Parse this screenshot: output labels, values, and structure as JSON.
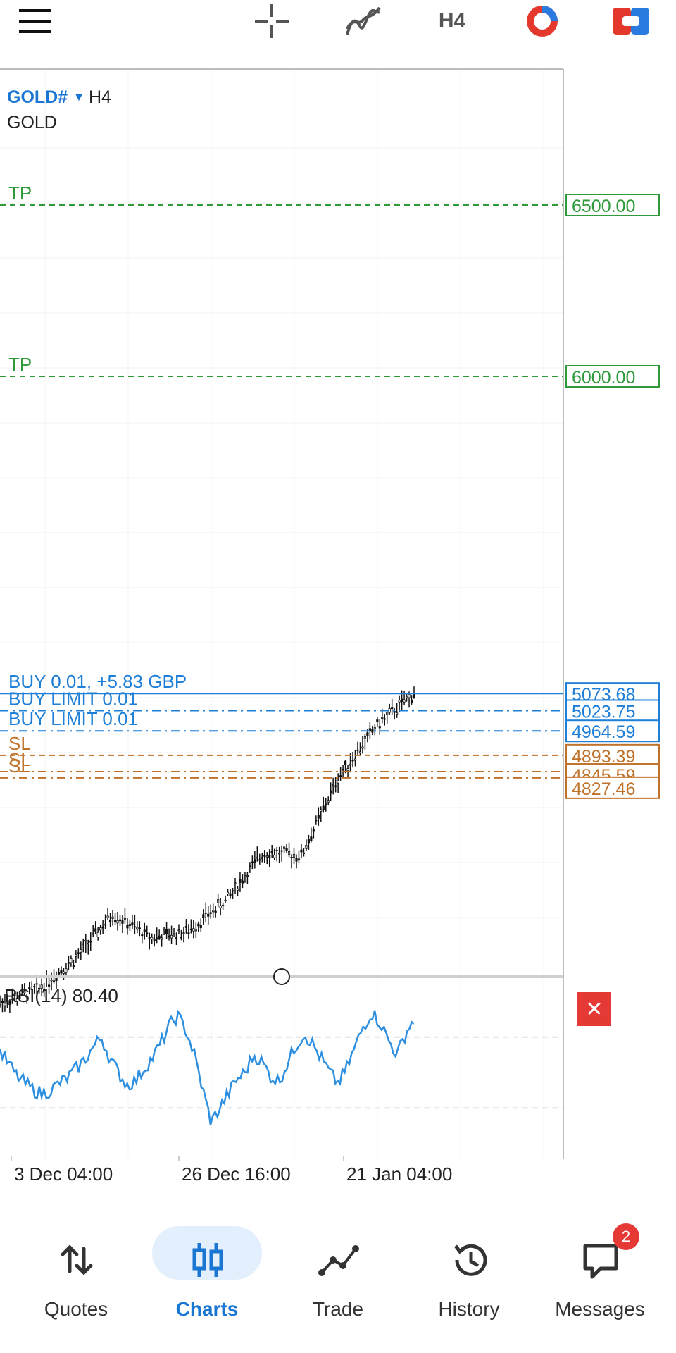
{
  "toolbar": {
    "menu_icon": "hamburger-menu-icon",
    "crosshair_icon": "crosshair-icon",
    "indicators_icon": "indicators-icon",
    "timeframe": "H4",
    "objects_icon": "chart-objects-icon",
    "trade_icon": "one-click-trading-icon"
  },
  "symbol": {
    "name": "GOLD#",
    "timeframe": "H4",
    "description": "GOLD"
  },
  "levels": [
    {
      "type": "tp",
      "label": "TP",
      "price": "6500.00"
    },
    {
      "type": "tp",
      "label": "TP",
      "price": "6000.00"
    },
    {
      "type": "position",
      "label": "BUY 0.01,  +5.83 GBP",
      "price": "5073.68"
    },
    {
      "type": "pending",
      "label": "BUY LIMIT 0.01",
      "price": "5023.75"
    },
    {
      "type": "pending",
      "label": "BUY LIMIT 0.01",
      "price": "4964.59"
    },
    {
      "type": "sl",
      "label": "SL",
      "price": "4893.39"
    },
    {
      "type": "sl",
      "label": "SL",
      "price": "4845.59"
    },
    {
      "type": "sl",
      "label": "SL",
      "price": "4827.46"
    }
  ],
  "rsi": {
    "label": "RSI(14) 80.40",
    "close_icon": "close-icon"
  },
  "time_axis": [
    "3 Dec 04:00",
    "26 Dec 16:00",
    "21 Jan 04:00"
  ],
  "colors": {
    "accent": "#1976d2",
    "tp": "#2e9a3a",
    "sl": "#c0722a",
    "position": "#1e7fd8",
    "rsi": "#2d8fe0",
    "close": "#e53935"
  },
  "chart_data": {
    "type": "candlestick",
    "symbol": "GOLD#",
    "timeframe": "H4",
    "x_ticks": [
      "3 Dec 04:00",
      "26 Dec 16:00",
      "21 Jan 04:00"
    ],
    "close_trend": [
      {
        "x": "3 Dec 04:00",
        "y": 4170
      },
      {
        "x": "10 Dec",
        "y": 4210
      },
      {
        "x": "17 Dec",
        "y": 4300
      },
      {
        "x": "22 Dec",
        "y": 4430
      },
      {
        "x": "26 Dec 16:00",
        "y": 4360
      },
      {
        "x": "31 Dec",
        "y": 4380
      },
      {
        "x": "7 Jan",
        "y": 4470
      },
      {
        "x": "14 Jan",
        "y": 4610
      },
      {
        "x": "17 Jan",
        "y": 4600
      },
      {
        "x": "21 Jan 04:00",
        "y": 4830
      },
      {
        "x": "23 Jan",
        "y": 4980
      },
      {
        "x": "26 Jan",
        "y": 5073.68
      }
    ],
    "rsi_series": {
      "name": "RSI(14)",
      "values": [
        62,
        55,
        48,
        44,
        40,
        38,
        40,
        44,
        47,
        52,
        57,
        64,
        70,
        58,
        50,
        43,
        45,
        52,
        58,
        66,
        76,
        82,
        74,
        60,
        40,
        22,
        30,
        38,
        46,
        50,
        60,
        56,
        48,
        45,
        55,
        65,
        72,
        66,
        58,
        50,
        44,
        52,
        64,
        76,
        84,
        78,
        68,
        60,
        72,
        80
      ]
    }
  }
}
